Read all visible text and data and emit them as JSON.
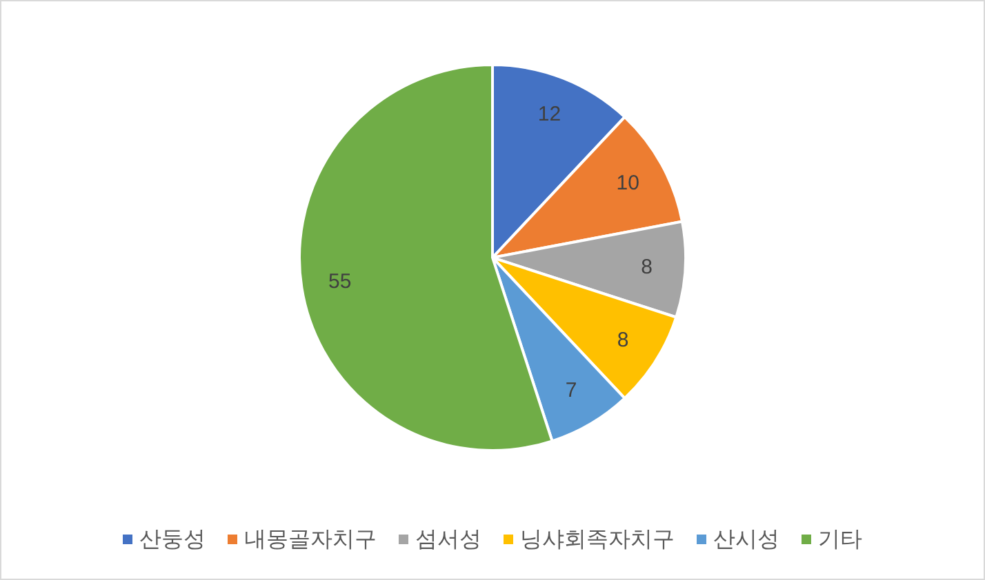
{
  "chart_data": {
    "type": "pie",
    "categories": [
      "산둥성",
      "내몽골자치구",
      "섬서성",
      "닝샤회족자치구",
      "산시성",
      "기타"
    ],
    "values": [
      12,
      10,
      8,
      8,
      7,
      55
    ],
    "colors": [
      "#4472c4",
      "#ed7d31",
      "#a5a5a5",
      "#ffc000",
      "#5b9bd5",
      "#70ad47"
    ],
    "data_labels": true,
    "legend": "bottom"
  }
}
